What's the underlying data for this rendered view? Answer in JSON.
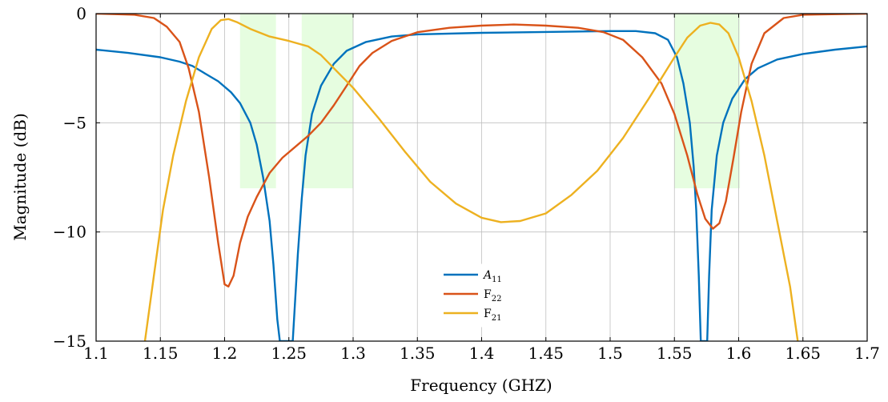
{
  "chart_data": {
    "type": "line",
    "title": "",
    "xlabel": "Frequency (GHZ)",
    "ylabel": "Magnitude (dB)",
    "xlim": [
      1.1,
      1.7
    ],
    "ylim": [
      -15,
      0
    ],
    "xticks": [
      1.1,
      1.15,
      1.2,
      1.25,
      1.3,
      1.35,
      1.4,
      1.45,
      1.5,
      1.55,
      1.6,
      1.65,
      1.7
    ],
    "xtick_labels": [
      "1.1",
      "1.15",
      "1.2",
      "1.25",
      "1.3",
      "1.35",
      "1.4",
      "1.45",
      "1.5",
      "1.55",
      "1.6",
      "1.65",
      "1.7"
    ],
    "yticks": [
      0,
      -5,
      -10,
      -15
    ],
    "ytick_labels": [
      "0",
      "−5",
      "−10",
      "−15"
    ],
    "grid": true,
    "legend_position": "bottom-center",
    "shaded_regions": [
      {
        "x0": 1.212,
        "x1": 1.24,
        "y0": -8,
        "y1": 0
      },
      {
        "x0": 1.26,
        "x1": 1.3,
        "y0": -8,
        "y1": 0
      },
      {
        "x0": 1.55,
        "x1": 1.601,
        "y0": -8,
        "y1": 0
      }
    ],
    "shade_color": "#e6fde0",
    "series": [
      {
        "name": "A11",
        "color": "#0072bd",
        "points": [
          [
            1.1,
            -1.65
          ],
          [
            1.125,
            -1.8
          ],
          [
            1.15,
            -2.0
          ],
          [
            1.165,
            -2.2
          ],
          [
            1.175,
            -2.4
          ],
          [
            1.185,
            -2.75
          ],
          [
            1.195,
            -3.1
          ],
          [
            1.205,
            -3.6
          ],
          [
            1.212,
            -4.1
          ],
          [
            1.22,
            -5.0
          ],
          [
            1.225,
            -6.0
          ],
          [
            1.23,
            -7.5
          ],
          [
            1.235,
            -9.5
          ],
          [
            1.238,
            -11.5
          ],
          [
            1.241,
            -14.0
          ],
          [
            1.243,
            -15.0
          ],
          [
            1.253,
            -15.0
          ],
          [
            1.255,
            -13.0
          ],
          [
            1.257,
            -11.0
          ],
          [
            1.26,
            -8.5
          ],
          [
            1.263,
            -6.5
          ],
          [
            1.268,
            -4.6
          ],
          [
            1.275,
            -3.3
          ],
          [
            1.285,
            -2.3
          ],
          [
            1.295,
            -1.7
          ],
          [
            1.31,
            -1.3
          ],
          [
            1.33,
            -1.05
          ],
          [
            1.35,
            -0.95
          ],
          [
            1.4,
            -0.88
          ],
          [
            1.45,
            -0.84
          ],
          [
            1.5,
            -0.8
          ],
          [
            1.52,
            -0.8
          ],
          [
            1.535,
            -0.9
          ],
          [
            1.545,
            -1.2
          ],
          [
            1.552,
            -2.0
          ],
          [
            1.557,
            -3.2
          ],
          [
            1.562,
            -5.0
          ],
          [
            1.565,
            -7.0
          ],
          [
            1.567,
            -9.0
          ],
          [
            1.569,
            -12.0
          ],
          [
            1.5705,
            -15.0
          ],
          [
            1.5755,
            -15.0
          ],
          [
            1.577,
            -12.0
          ],
          [
            1.579,
            -9.0
          ],
          [
            1.583,
            -6.5
          ],
          [
            1.588,
            -5.0
          ],
          [
            1.595,
            -3.9
          ],
          [
            1.605,
            -3.0
          ],
          [
            1.615,
            -2.5
          ],
          [
            1.63,
            -2.1
          ],
          [
            1.65,
            -1.85
          ],
          [
            1.675,
            -1.65
          ],
          [
            1.7,
            -1.5
          ]
        ]
      },
      {
        "name": "F22",
        "color": "#d95319",
        "points": [
          [
            1.1,
            0.0
          ],
          [
            1.13,
            -0.05
          ],
          [
            1.145,
            -0.2
          ],
          [
            1.155,
            -0.6
          ],
          [
            1.165,
            -1.3
          ],
          [
            1.172,
            -2.5
          ],
          [
            1.18,
            -4.5
          ],
          [
            1.188,
            -7.5
          ],
          [
            1.195,
            -10.5
          ],
          [
            1.2,
            -12.4
          ],
          [
            1.203,
            -12.5
          ],
          [
            1.207,
            -12.0
          ],
          [
            1.212,
            -10.5
          ],
          [
            1.218,
            -9.3
          ],
          [
            1.225,
            -8.4
          ],
          [
            1.235,
            -7.3
          ],
          [
            1.245,
            -6.6
          ],
          [
            1.255,
            -6.1
          ],
          [
            1.265,
            -5.6
          ],
          [
            1.275,
            -5.0
          ],
          [
            1.285,
            -4.2
          ],
          [
            1.295,
            -3.3
          ],
          [
            1.305,
            -2.4
          ],
          [
            1.315,
            -1.8
          ],
          [
            1.33,
            -1.25
          ],
          [
            1.35,
            -0.85
          ],
          [
            1.375,
            -0.65
          ],
          [
            1.4,
            -0.55
          ],
          [
            1.425,
            -0.5
          ],
          [
            1.45,
            -0.55
          ],
          [
            1.475,
            -0.65
          ],
          [
            1.495,
            -0.85
          ],
          [
            1.51,
            -1.2
          ],
          [
            1.525,
            -2.0
          ],
          [
            1.54,
            -3.2
          ],
          [
            1.55,
            -4.6
          ],
          [
            1.56,
            -6.5
          ],
          [
            1.568,
            -8.3
          ],
          [
            1.574,
            -9.4
          ],
          [
            1.58,
            -9.85
          ],
          [
            1.585,
            -9.6
          ],
          [
            1.59,
            -8.6
          ],
          [
            1.596,
            -6.6
          ],
          [
            1.602,
            -4.5
          ],
          [
            1.61,
            -2.3
          ],
          [
            1.62,
            -0.9
          ],
          [
            1.635,
            -0.2
          ],
          [
            1.65,
            -0.05
          ],
          [
            1.7,
            0.0
          ]
        ]
      },
      {
        "name": "F21",
        "color": "#edb120",
        "points": [
          [
            1.138,
            -15.0
          ],
          [
            1.145,
            -12.0
          ],
          [
            1.152,
            -9.0
          ],
          [
            1.16,
            -6.5
          ],
          [
            1.17,
            -4.0
          ],
          [
            1.18,
            -2.0
          ],
          [
            1.19,
            -0.7
          ],
          [
            1.197,
            -0.3
          ],
          [
            1.203,
            -0.25
          ],
          [
            1.21,
            -0.4
          ],
          [
            1.22,
            -0.7
          ],
          [
            1.235,
            -1.05
          ],
          [
            1.25,
            -1.25
          ],
          [
            1.265,
            -1.5
          ],
          [
            1.275,
            -1.9
          ],
          [
            1.285,
            -2.5
          ],
          [
            1.3,
            -3.4
          ],
          [
            1.32,
            -4.8
          ],
          [
            1.34,
            -6.3
          ],
          [
            1.36,
            -7.7
          ],
          [
            1.38,
            -8.7
          ],
          [
            1.4,
            -9.35
          ],
          [
            1.415,
            -9.55
          ],
          [
            1.43,
            -9.5
          ],
          [
            1.45,
            -9.15
          ],
          [
            1.47,
            -8.3
          ],
          [
            1.49,
            -7.2
          ],
          [
            1.51,
            -5.7
          ],
          [
            1.53,
            -3.9
          ],
          [
            1.55,
            -2.0
          ],
          [
            1.56,
            -1.1
          ],
          [
            1.57,
            -0.55
          ],
          [
            1.578,
            -0.42
          ],
          [
            1.585,
            -0.5
          ],
          [
            1.592,
            -0.9
          ],
          [
            1.6,
            -2.0
          ],
          [
            1.61,
            -4.0
          ],
          [
            1.62,
            -6.5
          ],
          [
            1.63,
            -9.5
          ],
          [
            1.64,
            -12.5
          ],
          [
            1.646,
            -15.0
          ]
        ]
      }
    ]
  },
  "legend": {
    "items": [
      {
        "name": "A",
        "sub": "11",
        "italic": true,
        "color": "#0072bd"
      },
      {
        "name": "F",
        "sub": "22",
        "italic": false,
        "color": "#d95319"
      },
      {
        "name": "F",
        "sub": "21",
        "italic": false,
        "color": "#edb120"
      }
    ]
  }
}
